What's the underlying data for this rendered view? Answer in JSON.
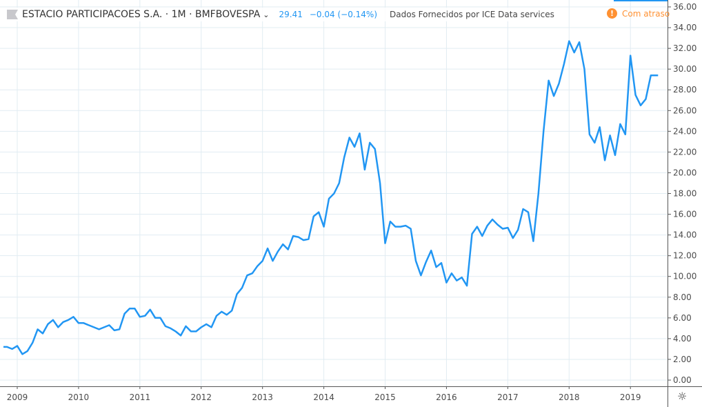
{
  "header": {
    "title": "ESTACIO PARTICIPACOES S.A. · 1M · BMFBOVESPA",
    "last_price": "29.41",
    "change": "−0.04 (−0.14%)",
    "provider": "Dados Fornecidos por ICE Data services",
    "delayed_label": "Com atraso",
    "delayed_icon": "!"
  },
  "colors": {
    "line": "#2196f3",
    "grid": "#e1ecf2",
    "axis": "#555555",
    "delayed": "#ff9132"
  },
  "settings_icon": "gear-icon",
  "chart_data": {
    "type": "line",
    "title": "ESTACIO PARTICIPACOES S.A. · 1M · BMFBOVESPA",
    "xlabel": "",
    "ylabel": "",
    "start": "2008-10",
    "interval": "1M",
    "ylim": [
      0,
      36
    ],
    "y_ticks": [
      "0.00",
      "2.00",
      "4.00",
      "6.00",
      "8.00",
      "10.00",
      "12.00",
      "14.00",
      "16.00",
      "18.00",
      "20.00",
      "22.00",
      "24.00",
      "26.00",
      "28.00",
      "30.00",
      "32.00",
      "34.00",
      "36.00"
    ],
    "x_ticks": [
      "2009",
      "2010",
      "2011",
      "2012",
      "2013",
      "2014",
      "2015",
      "2016",
      "2017",
      "2018",
      "2019"
    ],
    "grid": true,
    "series": [
      {
        "name": "ESTACIO PARTICIPACOES S.A.",
        "values": [
          3.2,
          3.2,
          3.0,
          3.3,
          2.5,
          2.8,
          3.6,
          4.9,
          4.5,
          5.4,
          5.8,
          5.1,
          5.6,
          5.8,
          6.1,
          5.5,
          5.5,
          5.3,
          5.1,
          4.9,
          5.1,
          5.3,
          4.8,
          4.9,
          6.4,
          6.9,
          6.9,
          6.1,
          6.2,
          6.8,
          6.0,
          6.0,
          5.2,
          5.0,
          4.7,
          4.3,
          5.2,
          4.7,
          4.7,
          5.1,
          5.4,
          5.1,
          6.2,
          6.6,
          6.3,
          6.7,
          8.3,
          8.9,
          10.1,
          10.3,
          11.0,
          11.5,
          12.7,
          11.5,
          12.4,
          13.1,
          12.6,
          13.9,
          13.8,
          13.5,
          13.6,
          15.8,
          16.2,
          14.8,
          17.5,
          18.0,
          19.0,
          21.5,
          23.4,
          22.5,
          23.8,
          20.3,
          22.9,
          22.3,
          19.0,
          13.2,
          15.3,
          14.8,
          14.8,
          14.9,
          14.6,
          11.5,
          10.1,
          11.4,
          12.5,
          10.9,
          11.3,
          9.4,
          10.3,
          9.6,
          9.9,
          9.1,
          14.1,
          14.8,
          13.9,
          14.9,
          15.5,
          15.0,
          14.6,
          14.7,
          13.7,
          14.5,
          16.5,
          16.2,
          13.4,
          18.0,
          24.0,
          28.9,
          27.4,
          28.6,
          30.5,
          32.7,
          31.6,
          32.6,
          30.0,
          23.7,
          22.9,
          24.4,
          21.2,
          23.6,
          21.7,
          24.7,
          23.7,
          31.3,
          27.5,
          26.5,
          27.1,
          29.4,
          29.4
        ]
      }
    ]
  }
}
